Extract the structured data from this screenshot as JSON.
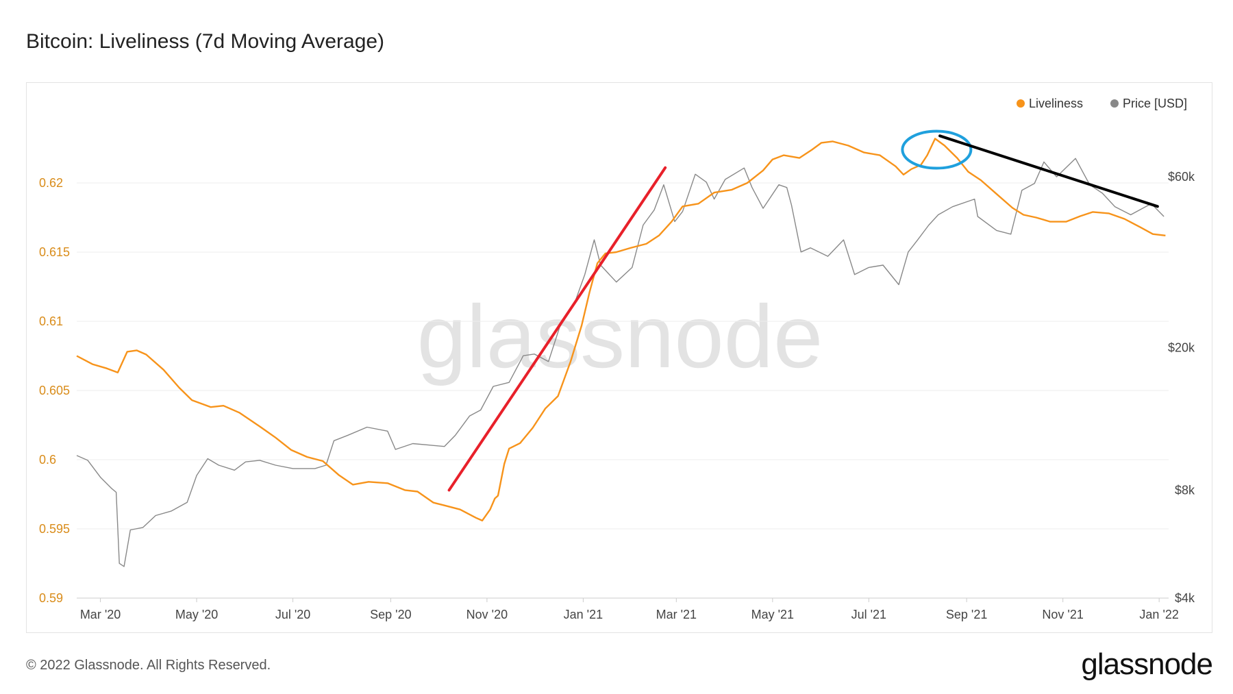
{
  "page": {
    "title": "Bitcoin: Liveliness (7d Moving Average)",
    "footer": "© 2022 Glassnode. All Rights Reserved.",
    "brand": "glassnode",
    "watermark": "glassnode"
  },
  "chart_data": {
    "type": "line",
    "title": "Bitcoin: Liveliness (7d Moving Average)",
    "legend": {
      "placement": "top-right",
      "entries": [
        "Liveliness",
        "Price [USD]"
      ]
    },
    "grid": true,
    "x_ticks": [
      {
        "label": "Mar '20",
        "date": "2020-03-01"
      },
      {
        "label": "May '20",
        "date": "2020-05-01"
      },
      {
        "label": "Jul '20",
        "date": "2020-07-01"
      },
      {
        "label": "Sep '20",
        "date": "2020-09-01"
      },
      {
        "label": "Nov '20",
        "date": "2020-11-01"
      },
      {
        "label": "Jan '21",
        "date": "2021-01-01"
      },
      {
        "label": "Mar '21",
        "date": "2021-03-01"
      },
      {
        "label": "May '21",
        "date": "2021-05-01"
      },
      {
        "label": "Jul '21",
        "date": "2021-07-01"
      },
      {
        "label": "Sep '21",
        "date": "2021-09-01"
      },
      {
        "label": "Nov '21",
        "date": "2021-11-01"
      },
      {
        "label": "Jan '22",
        "date": "2022-01-01"
      }
    ],
    "xlim": [
      "2020-02-15",
      "2022-01-07"
    ],
    "y_left": {
      "ylim": [
        0.59,
        0.625
      ],
      "ticks": [
        {
          "label": "0.59",
          "value": 0.59
        },
        {
          "label": "0.595",
          "value": 0.595
        },
        {
          "label": "0.6",
          "value": 0.6
        },
        {
          "label": "0.605",
          "value": 0.605
        },
        {
          "label": "0.61",
          "value": 0.61
        },
        {
          "label": "0.615",
          "value": 0.615
        },
        {
          "label": "0.62",
          "value": 0.62
        }
      ]
    },
    "y_right": {
      "scale": "log",
      "ylim": [
        4000,
        90000
      ],
      "ticks": [
        {
          "label": "$4k",
          "value": 4000
        },
        {
          "label": "$8k",
          "value": 8000
        },
        {
          "label": "$20k",
          "value": 20000
        },
        {
          "label": "$60k",
          "value": 60000
        }
      ]
    },
    "series": [
      {
        "name": "Liveliness",
        "color": "#f7931a",
        "axis": "left",
        "points": [
          [
            "2020-02-15",
            0.6075
          ],
          [
            "2020-02-25",
            0.6069
          ],
          [
            "2020-03-05",
            0.6066
          ],
          [
            "2020-03-12",
            0.6063
          ],
          [
            "2020-03-18",
            0.6078
          ],
          [
            "2020-03-24",
            0.6079
          ],
          [
            "2020-03-30",
            0.6076
          ],
          [
            "2020-04-10",
            0.6065
          ],
          [
            "2020-04-20",
            0.6052
          ],
          [
            "2020-04-28",
            0.6043
          ],
          [
            "2020-05-10",
            0.6038
          ],
          [
            "2020-05-18",
            0.6039
          ],
          [
            "2020-05-28",
            0.6034
          ],
          [
            "2020-06-10",
            0.6024
          ],
          [
            "2020-06-20",
            0.6016
          ],
          [
            "2020-06-30",
            0.6007
          ],
          [
            "2020-07-10",
            0.6002
          ],
          [
            "2020-07-20",
            0.5999
          ],
          [
            "2020-07-30",
            0.5989
          ],
          [
            "2020-08-08",
            0.5982
          ],
          [
            "2020-08-18",
            0.5984
          ],
          [
            "2020-08-30",
            0.5983
          ],
          [
            "2020-09-10",
            0.5978
          ],
          [
            "2020-09-18",
            0.5977
          ],
          [
            "2020-09-28",
            0.5969
          ],
          [
            "2020-10-05",
            0.5967
          ],
          [
            "2020-10-15",
            0.5964
          ],
          [
            "2020-10-25",
            0.5958
          ],
          [
            "2020-10-29",
            0.5956
          ],
          [
            "2020-11-03",
            0.5964
          ],
          [
            "2020-11-06",
            0.5972
          ],
          [
            "2020-11-08",
            0.5974
          ],
          [
            "2020-11-12",
            0.5997
          ],
          [
            "2020-11-15",
            0.6008
          ],
          [
            "2020-11-22",
            0.6012
          ],
          [
            "2020-11-30",
            0.6023
          ],
          [
            "2020-12-08",
            0.6037
          ],
          [
            "2020-12-16",
            0.6046
          ],
          [
            "2020-12-24",
            0.6071
          ],
          [
            "2020-12-31",
            0.6097
          ],
          [
            "2021-01-05",
            0.6121
          ],
          [
            "2021-01-10",
            0.6142
          ],
          [
            "2021-01-15",
            0.6149
          ],
          [
            "2021-01-22",
            0.615
          ],
          [
            "2021-01-31",
            0.6153
          ],
          [
            "2021-02-10",
            0.6156
          ],
          [
            "2021-02-18",
            0.6162
          ],
          [
            "2021-02-26",
            0.6172
          ],
          [
            "2021-03-05",
            0.6183
          ],
          [
            "2021-03-15",
            0.6185
          ],
          [
            "2021-03-25",
            0.6193
          ],
          [
            "2021-04-05",
            0.6195
          ],
          [
            "2021-04-15",
            0.62
          ],
          [
            "2021-04-25",
            0.6209
          ],
          [
            "2021-05-01",
            0.6217
          ],
          [
            "2021-05-08",
            0.622
          ],
          [
            "2021-05-18",
            0.6218
          ],
          [
            "2021-05-26",
            0.6224
          ],
          [
            "2021-06-01",
            0.6229
          ],
          [
            "2021-06-08",
            0.623
          ],
          [
            "2021-06-18",
            0.6227
          ],
          [
            "2021-06-28",
            0.6222
          ],
          [
            "2021-07-08",
            0.622
          ],
          [
            "2021-07-18",
            0.6212
          ],
          [
            "2021-07-23",
            0.6206
          ],
          [
            "2021-07-28",
            0.621
          ],
          [
            "2021-08-03",
            0.6213
          ],
          [
            "2021-08-07",
            0.622
          ],
          [
            "2021-08-12",
            0.6232
          ],
          [
            "2021-08-18",
            0.6227
          ],
          [
            "2021-08-26",
            0.6218
          ],
          [
            "2021-09-02",
            0.6208
          ],
          [
            "2021-09-10",
            0.6202
          ],
          [
            "2021-09-20",
            0.6192
          ],
          [
            "2021-09-30",
            0.6182
          ],
          [
            "2021-10-07",
            0.6177
          ],
          [
            "2021-10-15",
            0.6175
          ],
          [
            "2021-10-24",
            0.6172
          ],
          [
            "2021-11-03",
            0.6172
          ],
          [
            "2021-11-12",
            0.6176
          ],
          [
            "2021-11-20",
            0.6179
          ],
          [
            "2021-11-30",
            0.6178
          ],
          [
            "2021-12-10",
            0.6174
          ],
          [
            "2021-12-20",
            0.6168
          ],
          [
            "2021-12-28",
            0.6163
          ],
          [
            "2022-01-05",
            0.6162
          ]
        ]
      },
      {
        "name": "Price [USD]",
        "color": "#888888",
        "axis": "right",
        "points": [
          [
            "2020-02-15",
            10000
          ],
          [
            "2020-02-22",
            9700
          ],
          [
            "2020-03-01",
            8700
          ],
          [
            "2020-03-08",
            8100
          ],
          [
            "2020-03-11",
            7900
          ],
          [
            "2020-03-13",
            5000
          ],
          [
            "2020-03-16",
            4900
          ],
          [
            "2020-03-20",
            6200
          ],
          [
            "2020-03-28",
            6300
          ],
          [
            "2020-04-05",
            6800
          ],
          [
            "2020-04-15",
            7000
          ],
          [
            "2020-04-25",
            7400
          ],
          [
            "2020-05-01",
            8800
          ],
          [
            "2020-05-08",
            9800
          ],
          [
            "2020-05-15",
            9400
          ],
          [
            "2020-05-25",
            9100
          ],
          [
            "2020-06-01",
            9600
          ],
          [
            "2020-06-10",
            9700
          ],
          [
            "2020-06-20",
            9400
          ],
          [
            "2020-07-01",
            9200
          ],
          [
            "2020-07-15",
            9200
          ],
          [
            "2020-07-22",
            9400
          ],
          [
            "2020-07-27",
            11000
          ],
          [
            "2020-08-05",
            11400
          ],
          [
            "2020-08-17",
            12000
          ],
          [
            "2020-08-30",
            11700
          ],
          [
            "2020-09-04",
            10400
          ],
          [
            "2020-09-15",
            10800
          ],
          [
            "2020-09-25",
            10700
          ],
          [
            "2020-10-05",
            10600
          ],
          [
            "2020-10-12",
            11400
          ],
          [
            "2020-10-21",
            12900
          ],
          [
            "2020-10-28",
            13400
          ],
          [
            "2020-11-05",
            15600
          ],
          [
            "2020-11-15",
            16000
          ],
          [
            "2020-11-24",
            19000
          ],
          [
            "2020-12-01",
            19200
          ],
          [
            "2020-12-10",
            18300
          ],
          [
            "2020-12-17",
            22800
          ],
          [
            "2020-12-27",
            27000
          ],
          [
            "2021-01-02",
            32000
          ],
          [
            "2021-01-08",
            40000
          ],
          [
            "2021-01-12",
            34000
          ],
          [
            "2021-01-22",
            30500
          ],
          [
            "2021-02-01",
            33500
          ],
          [
            "2021-02-08",
            44000
          ],
          [
            "2021-02-15",
            48500
          ],
          [
            "2021-02-21",
            57000
          ],
          [
            "2021-02-28",
            45000
          ],
          [
            "2021-03-05",
            48000
          ],
          [
            "2021-03-13",
            61000
          ],
          [
            "2021-03-20",
            58000
          ],
          [
            "2021-03-25",
            52000
          ],
          [
            "2021-04-01",
            59000
          ],
          [
            "2021-04-13",
            63500
          ],
          [
            "2021-04-18",
            56000
          ],
          [
            "2021-04-25",
            49000
          ],
          [
            "2021-05-05",
            57000
          ],
          [
            "2021-05-10",
            56000
          ],
          [
            "2021-05-13",
            50000
          ],
          [
            "2021-05-19",
            37000
          ],
          [
            "2021-05-25",
            38000
          ],
          [
            "2021-06-05",
            36000
          ],
          [
            "2021-06-15",
            40000
          ],
          [
            "2021-06-22",
            32000
          ],
          [
            "2021-07-01",
            33500
          ],
          [
            "2021-07-10",
            34000
          ],
          [
            "2021-07-20",
            30000
          ],
          [
            "2021-07-26",
            37000
          ],
          [
            "2021-08-01",
            40000
          ],
          [
            "2021-08-08",
            44000
          ],
          [
            "2021-08-14",
            47000
          ],
          [
            "2021-08-23",
            49500
          ],
          [
            "2021-09-06",
            52000
          ],
          [
            "2021-09-08",
            46500
          ],
          [
            "2021-09-20",
            42500
          ],
          [
            "2021-09-29",
            41500
          ],
          [
            "2021-10-06",
            55000
          ],
          [
            "2021-10-14",
            57500
          ],
          [
            "2021-10-20",
            66000
          ],
          [
            "2021-10-28",
            60000
          ],
          [
            "2021-11-09",
            67500
          ],
          [
            "2021-11-18",
            57000
          ],
          [
            "2021-11-26",
            54000
          ],
          [
            "2021-12-04",
            49500
          ],
          [
            "2021-12-14",
            47000
          ],
          [
            "2021-12-27",
            50500
          ],
          [
            "2022-01-04",
            46500
          ]
        ]
      }
    ],
    "annotations": [
      {
        "type": "trend-line",
        "color": "#e8202a",
        "from": {
          "date": "2020-10-08",
          "axis": "left",
          "value": 0.5978
        },
        "to": {
          "date": "2021-02-22",
          "axis": "left",
          "value": 0.6211
        }
      },
      {
        "type": "ellipse",
        "color": "#1fa0dd",
        "center": {
          "date": "2021-08-13",
          "axis": "left",
          "value": 0.6224
        }
      },
      {
        "type": "trend-line",
        "color": "#000000",
        "from": {
          "date": "2021-08-15",
          "axis": "left",
          "value": 0.6234
        },
        "to": {
          "date": "2021-12-31",
          "axis": "left",
          "value": 0.6183
        }
      }
    ]
  }
}
